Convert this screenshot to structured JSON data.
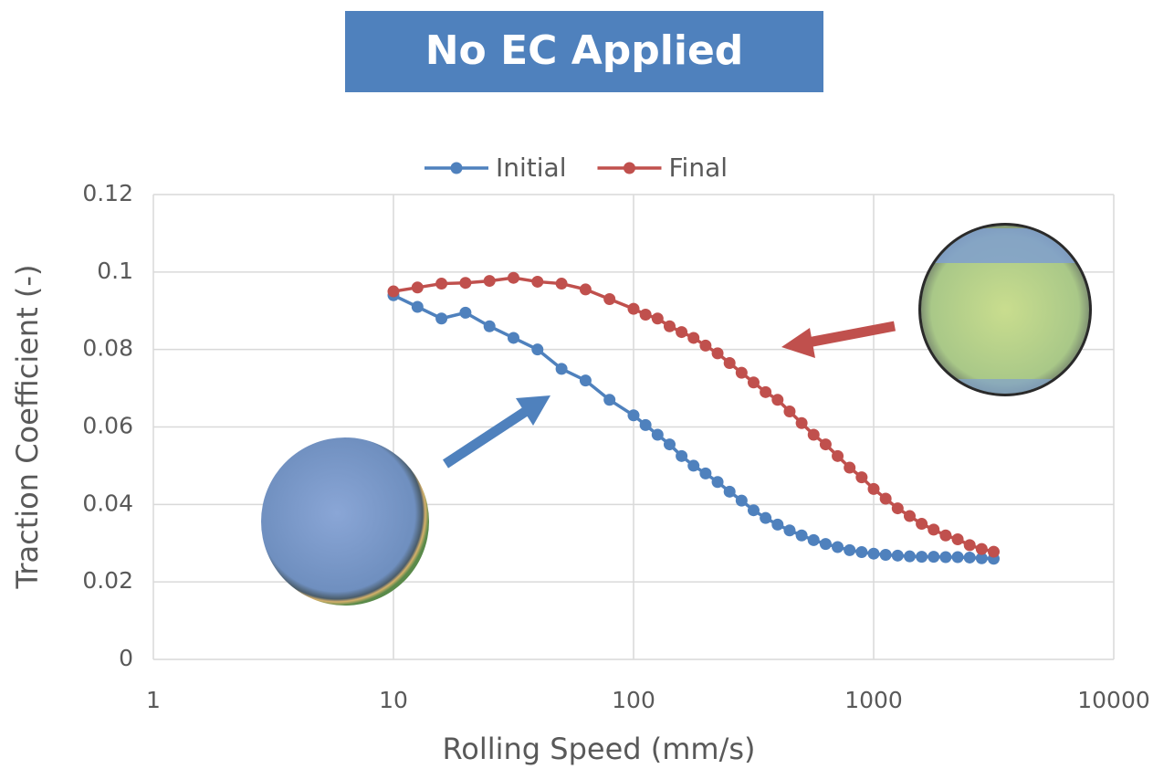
{
  "chart_data": {
    "type": "line",
    "title": "No EC Applied",
    "x_label": "Rolling Speed (mm/s)",
    "y_label": "Traction Coefficient (-)",
    "xscale": "log",
    "grid": true,
    "legend": "top",
    "xlim": [
      1,
      10000
    ],
    "xticks": [
      1,
      10,
      100,
      1000,
      10000
    ],
    "ylim": [
      0,
      0.12
    ],
    "yticks": [
      0,
      0.02,
      0.04,
      0.06,
      0.08,
      0.1,
      0.12
    ],
    "x": [
      10,
      12.59,
      15.85,
      19.95,
      25.12,
      31.62,
      39.81,
      50.12,
      63.1,
      79.43,
      100,
      112.2,
      125.9,
      141.3,
      158.5,
      177.8,
      199.5,
      223.9,
      251.2,
      281.8,
      316.2,
      354.8,
      398.1,
      446.7,
      501.2,
      562.3,
      631,
      707.9,
      794.3,
      891.3,
      1000,
      1122,
      1259,
      1413,
      1585,
      1778,
      1995,
      2239,
      2512,
      2818,
      3162
    ],
    "series": [
      {
        "name": "Initial",
        "color": "#4f81bd",
        "values": [
          0.094,
          0.091,
          0.088,
          0.0895,
          0.086,
          0.083,
          0.08,
          0.075,
          0.072,
          0.067,
          0.063,
          0.0605,
          0.058,
          0.0555,
          0.0525,
          0.05,
          0.048,
          0.0458,
          0.0433,
          0.041,
          0.0385,
          0.0365,
          0.0348,
          0.0333,
          0.032,
          0.0308,
          0.0298,
          0.029,
          0.0282,
          0.0277,
          0.0273,
          0.027,
          0.0268,
          0.0266,
          0.0265,
          0.0265,
          0.0264,
          0.0264,
          0.0263,
          0.0261,
          0.026
        ]
      },
      {
        "name": "Final",
        "color": "#c0504d",
        "values": [
          0.095,
          0.096,
          0.097,
          0.0972,
          0.0977,
          0.0985,
          0.0975,
          0.097,
          0.0955,
          0.093,
          0.0905,
          0.089,
          0.088,
          0.086,
          0.0845,
          0.083,
          0.081,
          0.079,
          0.0765,
          0.074,
          0.0715,
          0.069,
          0.067,
          0.064,
          0.061,
          0.058,
          0.0555,
          0.0525,
          0.0495,
          0.047,
          0.044,
          0.0415,
          0.039,
          0.037,
          0.035,
          0.0335,
          0.032,
          0.031,
          0.0295,
          0.0285,
          0.0278
        ]
      }
    ]
  }
}
